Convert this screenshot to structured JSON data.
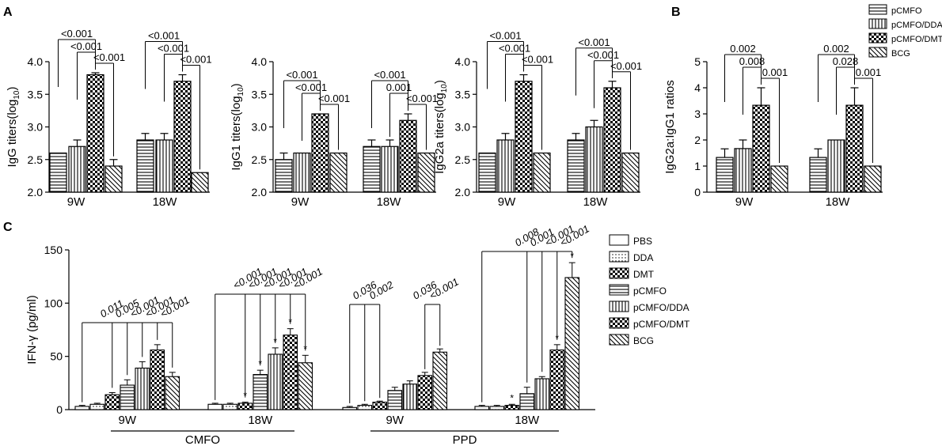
{
  "panels": [
    {
      "label": "A",
      "title": "",
      "ylabel": "IgG titers(log",
      "ylabel_sub": "10",
      "ylabel_end": ")",
      "ylim": [
        2.0,
        4.0
      ],
      "ticks": [
        "2.0",
        "2.5",
        "3.0",
        "3.5",
        "4.0"
      ],
      "tick_values": [
        2.0,
        2.5,
        3.0,
        3.5,
        4.0
      ],
      "categories": [
        "9W",
        "18W"
      ],
      "series": [
        {
          "name": "pCMFO",
          "values": [
            2.6,
            2.8
          ],
          "errors": [
            0,
            0.1
          ]
        },
        {
          "name": "pCMFO/DDA",
          "values": [
            2.7,
            2.8
          ],
          "errors": [
            0.1,
            0.1
          ]
        },
        {
          "name": "pCMFO/DMT",
          "values": [
            3.8,
            3.7
          ],
          "errors": [
            0.03,
            0.1
          ]
        },
        {
          "name": "BCG",
          "values": [
            2.4,
            2.3
          ],
          "errors": [
            0.1,
            0
          ]
        }
      ],
      "pvals": [
        [
          "<0.001",
          "<0.001",
          "<0.001"
        ],
        [
          "<0.001",
          "<0.001",
          "<0.001"
        ]
      ]
    },
    {
      "label": "",
      "ylabel": "IgG1 titers(log",
      "ylabel_sub": "10",
      "ylabel_end": ")",
      "ylim": [
        2.0,
        4.0
      ],
      "ticks": [
        "2.0",
        "2.5",
        "3.0",
        "3.5",
        "4.0"
      ],
      "tick_values": [
        2.0,
        2.5,
        3.0,
        3.5,
        4.0
      ],
      "categories": [
        "9W",
        "18W"
      ],
      "series": [
        {
          "name": "pCMFO",
          "values": [
            2.5,
            2.7
          ],
          "errors": [
            0.1,
            0.1
          ]
        },
        {
          "name": "pCMFO/DDA",
          "values": [
            2.6,
            2.7
          ],
          "errors": [
            0,
            0.1
          ]
        },
        {
          "name": "pCMFO/DMT",
          "values": [
            3.2,
            3.1
          ],
          "errors": [
            0,
            0.1
          ]
        },
        {
          "name": "BCG",
          "values": [
            2.6,
            2.6
          ],
          "errors": [
            0,
            0
          ]
        }
      ],
      "pvals": [
        [
          "<0.001",
          "<0.001",
          "<0.001"
        ],
        [
          "<0.001",
          "0.001",
          "<0.001"
        ]
      ]
    },
    {
      "label": "",
      "ylabel": "IgG2a titers(log",
      "ylabel_sub": "10",
      "ylabel_end": ")",
      "ylim": [
        2.0,
        4.0
      ],
      "ticks": [
        "2.0",
        "2.5",
        "3.0",
        "3.5",
        "4.0"
      ],
      "tick_values": [
        2.0,
        2.5,
        3.0,
        3.5,
        4.0
      ],
      "categories": [
        "9W",
        "18W"
      ],
      "series": [
        {
          "name": "pCMFO",
          "values": [
            2.6,
            2.8
          ],
          "errors": [
            0,
            0.1
          ]
        },
        {
          "name": "pCMFO/DDA",
          "values": [
            2.8,
            3.0
          ],
          "errors": [
            0.1,
            0.1
          ]
        },
        {
          "name": "pCMFO/DMT",
          "values": [
            3.7,
            3.6
          ],
          "errors": [
            0.1,
            0.1
          ]
        },
        {
          "name": "BCG",
          "values": [
            2.6,
            2.6
          ],
          "errors": [
            0,
            0
          ]
        }
      ],
      "pvals": [
        [
          "<0.001",
          "<0.001",
          "<0.001"
        ],
        [
          "<0.001",
          "<0.001",
          "<0.001"
        ]
      ]
    },
    {
      "label": "B",
      "ylabel": "IgG2a:IgG1 ratios",
      "ylabel_sub": "",
      "ylabel_end": "",
      "ylim": [
        0,
        5
      ],
      "ticks": [
        "0",
        "1",
        "2",
        "3",
        "4",
        "5"
      ],
      "tick_values": [
        0,
        1,
        2,
        3,
        4,
        5
      ],
      "categories": [
        "9W",
        "18W"
      ],
      "series": [
        {
          "name": "pCMFO",
          "values": [
            1.33,
            1.33
          ],
          "errors": [
            0.33,
            0.33
          ]
        },
        {
          "name": "pCMFO/DDA",
          "values": [
            1.67,
            2.0
          ],
          "errors": [
            0.33,
            0
          ]
        },
        {
          "name": "pCMFO/DMT",
          "values": [
            3.33,
            3.33
          ],
          "errors": [
            0.67,
            0.67
          ]
        },
        {
          "name": "BCG",
          "values": [
            1.0,
            1.0
          ],
          "errors": [
            0,
            0
          ]
        }
      ],
      "pvals": [
        [
          "0.002",
          "0.008",
          "0.001"
        ],
        [
          "0.002",
          "0.028",
          "0.001"
        ]
      ]
    }
  ],
  "legend_ab": [
    "pCMFO",
    "pCMFO/DDA",
    "pCMFO/DMT",
    "BCG"
  ],
  "panel_c": {
    "label": "C",
    "ylabel": "IFN-γ (pg/ml)",
    "ylim": [
      0,
      150
    ],
    "ticks": [
      "0",
      "50",
      "100",
      "150"
    ],
    "tick_values": [
      0,
      50,
      100,
      150
    ],
    "series_names": [
      "PBS",
      "DDA",
      "DMT",
      "pCMFO",
      "pCMFO/DDA",
      "pCMFO/DMT",
      "BCG"
    ],
    "groups": [
      {
        "name": "9W",
        "values": [
          3,
          5,
          14,
          23,
          39,
          56,
          31
        ],
        "errors": [
          1,
          1,
          2,
          5,
          6,
          5,
          4
        ],
        "stars": [
          false,
          false,
          false,
          false,
          false,
          false,
          false
        ],
        "pvals": [
          "0.011",
          "0.005",
          "<0.001",
          "<0.001",
          "<0.001"
        ]
      },
      {
        "name": "18W",
        "values": [
          5,
          5,
          6,
          33,
          52,
          70,
          44
        ],
        "errors": [
          1,
          1,
          1,
          4,
          6,
          6,
          7
        ],
        "stars": [
          false,
          false,
          true,
          true,
          true,
          true,
          true
        ],
        "pvals": [
          "<0.001",
          "<0.001",
          "<0.001",
          "<0.001",
          "<0.001"
        ]
      },
      {
        "name": "9W",
        "values": [
          2,
          4,
          7,
          18,
          24,
          32,
          54
        ],
        "errors": [
          1,
          1,
          1,
          3,
          3,
          3,
          3
        ],
        "stars": [
          false,
          false,
          false,
          false,
          false,
          false,
          false
        ],
        "pvals": [
          "0.036",
          "0.002",
          "0.036",
          "<0.001"
        ]
      },
      {
        "name": "18W",
        "values": [
          3,
          3,
          4,
          15,
          29,
          56,
          124
        ],
        "errors": [
          1,
          1,
          1,
          6,
          2,
          5,
          14
        ],
        "stars": [
          false,
          false,
          true,
          false,
          false,
          true,
          true
        ],
        "pvals": [
          "0.008",
          "0.001",
          "<0.001",
          "<0.001"
        ]
      }
    ],
    "antigens": [
      "CMFO",
      "PPD"
    ],
    "star": "*"
  }
}
